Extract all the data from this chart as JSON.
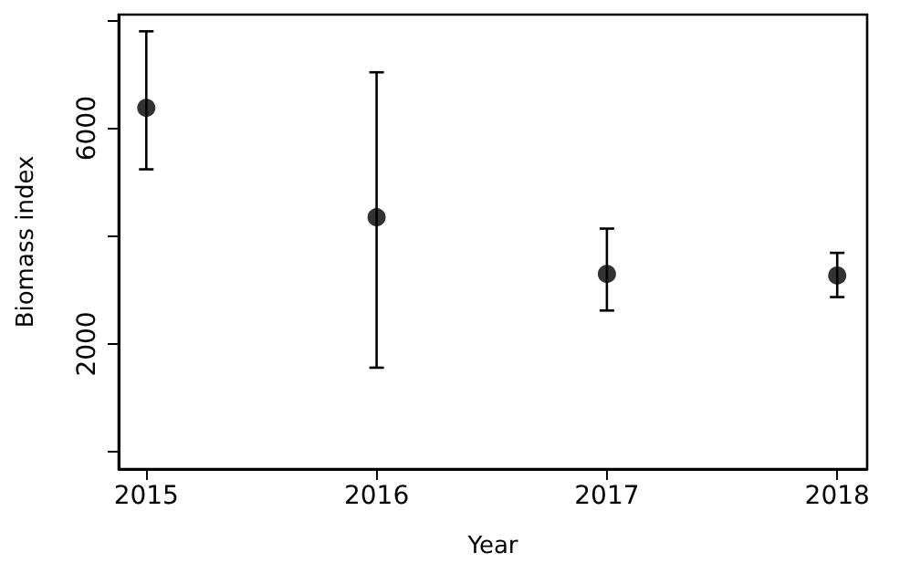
{
  "chart_data": {
    "type": "scatter",
    "xlabel": "Year",
    "ylabel": "Biomass index",
    "color": "#000000",
    "marker": "circle",
    "x": [
      2015,
      2016,
      2017,
      2018
    ],
    "values": [
      6380,
      4350,
      3300,
      3270
    ],
    "errors": [
      [
        5240,
        7800
      ],
      [
        1560,
        7040
      ],
      [
        2620,
        4140
      ],
      [
        2870,
        3690
      ]
    ],
    "xlim": [
      2014.88,
      2018.13
    ],
    "xticks": [
      2015,
      2016,
      2017,
      2018
    ],
    "ylim": [
      -320,
      8110
    ],
    "yticks": [
      {
        "value": 0,
        "label": null
      },
      2000,
      {
        "value": 4000,
        "label": null
      },
      6000,
      {
        "value": 8000,
        "label": null
      }
    ]
  }
}
